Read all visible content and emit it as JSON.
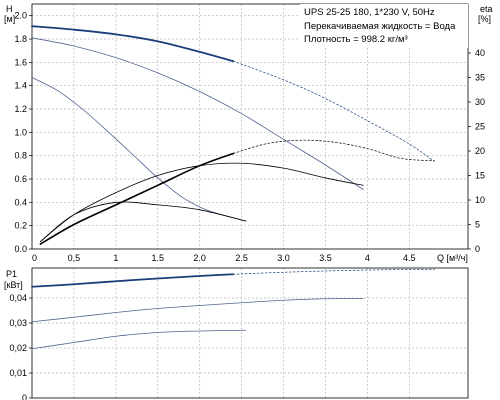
{
  "chart_data": [
    {
      "type": "line",
      "ylabel_top": "H",
      "ylabel_unit": "[м]",
      "y2label": "eta",
      "y2unit": "[%]",
      "xlabel": "Q [м³/ч]",
      "info": {
        "line1": "UPS 25-25 180, 1*230 V, 50Hz",
        "line2": "Перекачиваемая жидкость = Вода",
        "line3": "Плотность = 998.2 кг/м³"
      },
      "xlim": [
        0,
        5.2
      ],
      "ylim": [
        0,
        2.1
      ],
      "y2lim": [
        0,
        50
      ],
      "grid": true,
      "x_ticks": [
        "0",
        "0,5",
        "1",
        "1.5",
        "2.0",
        "2.5",
        "3.0",
        "3.5",
        "4",
        "4.5"
      ],
      "x_tick_values": [
        0,
        0.5,
        1,
        1.5,
        2.0,
        2.5,
        3.0,
        3.5,
        4,
        4.5
      ],
      "y_ticks": [
        "0.0",
        "0.2",
        "0.4",
        "0.6",
        "0.8",
        "1.0",
        "1.2",
        "1.4",
        "1.6",
        "1.8",
        "2.0"
      ],
      "y_tick_values": [
        0,
        0.2,
        0.4,
        0.6,
        0.8,
        1.0,
        1.2,
        1.4,
        1.6,
        1.8,
        2.0
      ],
      "y2_ticks": [
        "0",
        "5",
        "10",
        "15",
        "20",
        "25",
        "30",
        "35",
        "40"
      ],
      "y2_tick_values": [
        0,
        5,
        10,
        15,
        20,
        25,
        30,
        35,
        40
      ],
      "series": [
        {
          "axis": "left",
          "color": "#1a3f7a",
          "width": 1.8,
          "style": "solid",
          "x": [
            0,
            0.5,
            1.0,
            1.5,
            2.0,
            2.4
          ],
          "y": [
            1.91,
            1.88,
            1.84,
            1.78,
            1.69,
            1.61
          ]
        },
        {
          "axis": "left",
          "color": "#1a3f7a",
          "width": 0.7,
          "style": "dotted",
          "x": [
            2.4,
            3.0,
            3.5,
            4.0,
            4.5,
            4.8
          ],
          "y": [
            1.61,
            1.45,
            1.29,
            1.1,
            0.9,
            0.75
          ]
        },
        {
          "axis": "left",
          "color": "#4f6290",
          "width": 0.8,
          "style": "solid",
          "x": [
            0,
            0.5,
            1.0,
            1.5,
            2.0,
            2.5,
            3.0,
            3.5,
            3.95
          ],
          "y": [
            1.81,
            1.74,
            1.64,
            1.51,
            1.35,
            1.16,
            0.94,
            0.72,
            0.51
          ]
        },
        {
          "axis": "left",
          "color": "#4f6290",
          "width": 0.8,
          "style": "solid",
          "x": [
            0,
            0.3,
            0.6,
            0.9,
            1.2,
            1.5,
            1.8,
            2.1,
            2.55
          ],
          "y": [
            1.47,
            1.36,
            1.2,
            1.01,
            0.81,
            0.61,
            0.44,
            0.33,
            0.24
          ]
        },
        {
          "axis": "right",
          "color": "#000000",
          "width": 1.6,
          "style": "solid",
          "x": [
            0.1,
            0.5,
            1.0,
            1.5,
            2.0,
            2.4
          ],
          "y": [
            1,
            5,
            9,
            13,
            17,
            19.5
          ]
        },
        {
          "axis": "right",
          "color": "#000000",
          "width": 0.7,
          "style": "dotted",
          "x": [
            2.4,
            2.8,
            3.2,
            3.6,
            4.0,
            4.4,
            4.8
          ],
          "y": [
            19.5,
            21.5,
            22.2,
            21.8,
            20.5,
            18.5,
            18
          ]
        },
        {
          "axis": "right",
          "color": "#000000",
          "width": 0.8,
          "style": "solid",
          "x": [
            0.1,
            0.5,
            1.0,
            1.5,
            2.0,
            2.5,
            3.0,
            3.5,
            3.95
          ],
          "y": [
            1.5,
            7,
            11.5,
            15,
            17,
            17.5,
            16.5,
            14.5,
            13
          ]
        },
        {
          "axis": "right",
          "color": "#000000",
          "width": 0.8,
          "style": "solid",
          "x": [
            0.1,
            0.5,
            1.0,
            1.5,
            2.0,
            2.55
          ],
          "y": [
            1.5,
            7,
            9.5,
            9,
            8,
            5.7
          ]
        }
      ]
    },
    {
      "type": "line",
      "ylabel_top": "P1",
      "ylabel_unit": "[кВт]",
      "xlim": [
        0,
        5.2
      ],
      "ylim": [
        0,
        0.052
      ],
      "grid": true,
      "y_ticks": [
        "0",
        "0,01",
        "0,02",
        "0,03",
        "0,04"
      ],
      "y_tick_values": [
        0,
        0.01,
        0.02,
        0.03,
        0.04
      ],
      "series": [
        {
          "color": "#1a3f7a",
          "width": 1.8,
          "style": "solid",
          "x": [
            0,
            0.5,
            1.0,
            1.5,
            2.0,
            2.4
          ],
          "y": [
            0.0445,
            0.0455,
            0.0467,
            0.0478,
            0.0488,
            0.0495
          ]
        },
        {
          "color": "#1a3f7a",
          "width": 0.7,
          "style": "dotted",
          "x": [
            2.4,
            3.0,
            3.6,
            4.2,
            4.8
          ],
          "y": [
            0.0495,
            0.0503,
            0.0509,
            0.0513,
            0.0515
          ]
        },
        {
          "color": "#4f6290",
          "width": 0.8,
          "style": "solid",
          "x": [
            0,
            0.5,
            1.0,
            1.5,
            2.0,
            2.5,
            3.0,
            3.5,
            3.95
          ],
          "y": [
            0.0305,
            0.0323,
            0.0342,
            0.0358,
            0.037,
            0.0381,
            0.0391,
            0.0397,
            0.0398
          ]
        },
        {
          "color": "#4f6290",
          "width": 0.8,
          "style": "solid",
          "x": [
            0,
            0.5,
            1.0,
            1.5,
            2.0,
            2.55
          ],
          "y": [
            0.0197,
            0.0222,
            0.0247,
            0.0262,
            0.0268,
            0.0271
          ]
        }
      ]
    }
  ]
}
